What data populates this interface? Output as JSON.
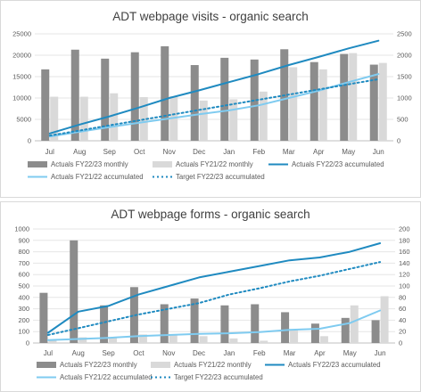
{
  "colors": {
    "bar_current": "#8c8c8c",
    "bar_prior": "#d9d9d9",
    "line_current_acc": "#1f8ac0",
    "line_prior_acc": "#7fcbf0",
    "line_target": "#1f8ac0",
    "grid": "#e6e6e6",
    "text": "#595959",
    "title": "#404040"
  },
  "chart_data": [
    {
      "type": "bar",
      "title": "ADT webpage visits - organic search",
      "categories": [
        "Jul",
        "Aug",
        "Sep",
        "Oct",
        "Nov",
        "Dec",
        "Jan",
        "Feb",
        "Mar",
        "Apr",
        "May",
        "Jun"
      ],
      "ylim_left": [
        0,
        25000
      ],
      "yticks_left": [
        0,
        5000,
        10000,
        15000,
        20000,
        25000
      ],
      "ylim_right": [
        0,
        2500
      ],
      "yticks_right": [
        0,
        500,
        1000,
        1500,
        2000,
        2500
      ],
      "grid": true,
      "legend_position": "bottom",
      "series": [
        {
          "name": "Actuals FY22/23 monthly",
          "kind": "bar",
          "axis": "left",
          "values": [
            16700,
            21300,
            19200,
            20700,
            22100,
            17700,
            19400,
            19000,
            21400,
            18400,
            20300,
            17800
          ]
        },
        {
          "name": "Actuals FY21/22 monthly",
          "kind": "bar",
          "axis": "left",
          "values": [
            10300,
            10300,
            11100,
            10200,
            10400,
            9400,
            9700,
            11500,
            17200,
            16700,
            20500,
            18200
          ]
        },
        {
          "name": "Actuals FY22/23 accumulated",
          "kind": "line",
          "axis": "right",
          "values": [
            170,
            380,
            570,
            780,
            1000,
            1180,
            1370,
            1560,
            1770,
            1960,
            2160,
            2340
          ]
        },
        {
          "name": "Actuals FY21/22 accumulated",
          "kind": "line",
          "axis": "right",
          "values": [
            100,
            210,
            320,
            420,
            520,
            620,
            710,
            830,
            1000,
            1170,
            1370,
            1560
          ]
        },
        {
          "name": "Target FY22/23 accumulated",
          "kind": "dotted",
          "axis": "right",
          "values": [
            120,
            240,
            360,
            480,
            600,
            720,
            840,
            960,
            1080,
            1200,
            1320,
            1440
          ]
        }
      ]
    },
    {
      "type": "bar",
      "title": "ADT webpage forms - organic search",
      "categories": [
        "Jul",
        "Aug",
        "Sep",
        "Oct",
        "Nov",
        "Dec",
        "Jan",
        "Feb",
        "Mar",
        "Apr",
        "May",
        "Jun"
      ],
      "ylim_left": [
        0,
        1000
      ],
      "yticks_left": [
        0,
        100,
        200,
        300,
        400,
        500,
        600,
        700,
        800,
        900,
        1000
      ],
      "ylim_right": [
        0,
        200
      ],
      "yticks_right": [
        0,
        20,
        40,
        60,
        80,
        100,
        120,
        140,
        160,
        180,
        200
      ],
      "grid": true,
      "legend_position": "bottom",
      "series": [
        {
          "name": "Actuals FY22/23 monthly",
          "kind": "bar",
          "axis": "left",
          "values": [
            440,
            900,
            330,
            490,
            340,
            390,
            330,
            340,
            270,
            170,
            220,
            200
          ]
        },
        {
          "name": "Actuals FY21/22 monthly",
          "kind": "bar",
          "axis": "left",
          "values": [
            30,
            50,
            45,
            75,
            75,
            60,
            40,
            20,
            110,
            60,
            330,
            410
          ]
        },
        {
          "name": "Actuals FY22/23 accumulated",
          "kind": "line",
          "axis": "right",
          "values": [
            18,
            55,
            65,
            85,
            100,
            115,
            125,
            135,
            145,
            150,
            160,
            175
          ]
        },
        {
          "name": "Actuals FY21/22 accumulated",
          "kind": "line",
          "axis": "right",
          "values": [
            5,
            7,
            9,
            12,
            14,
            16,
            17,
            19,
            23,
            25,
            35,
            57
          ]
        },
        {
          "name": "Target FY22/23 accumulated",
          "kind": "dotted",
          "axis": "right",
          "values": [
            14,
            26,
            38,
            50,
            60,
            70,
            85,
            96,
            108,
            118,
            130,
            142
          ]
        }
      ]
    }
  ]
}
